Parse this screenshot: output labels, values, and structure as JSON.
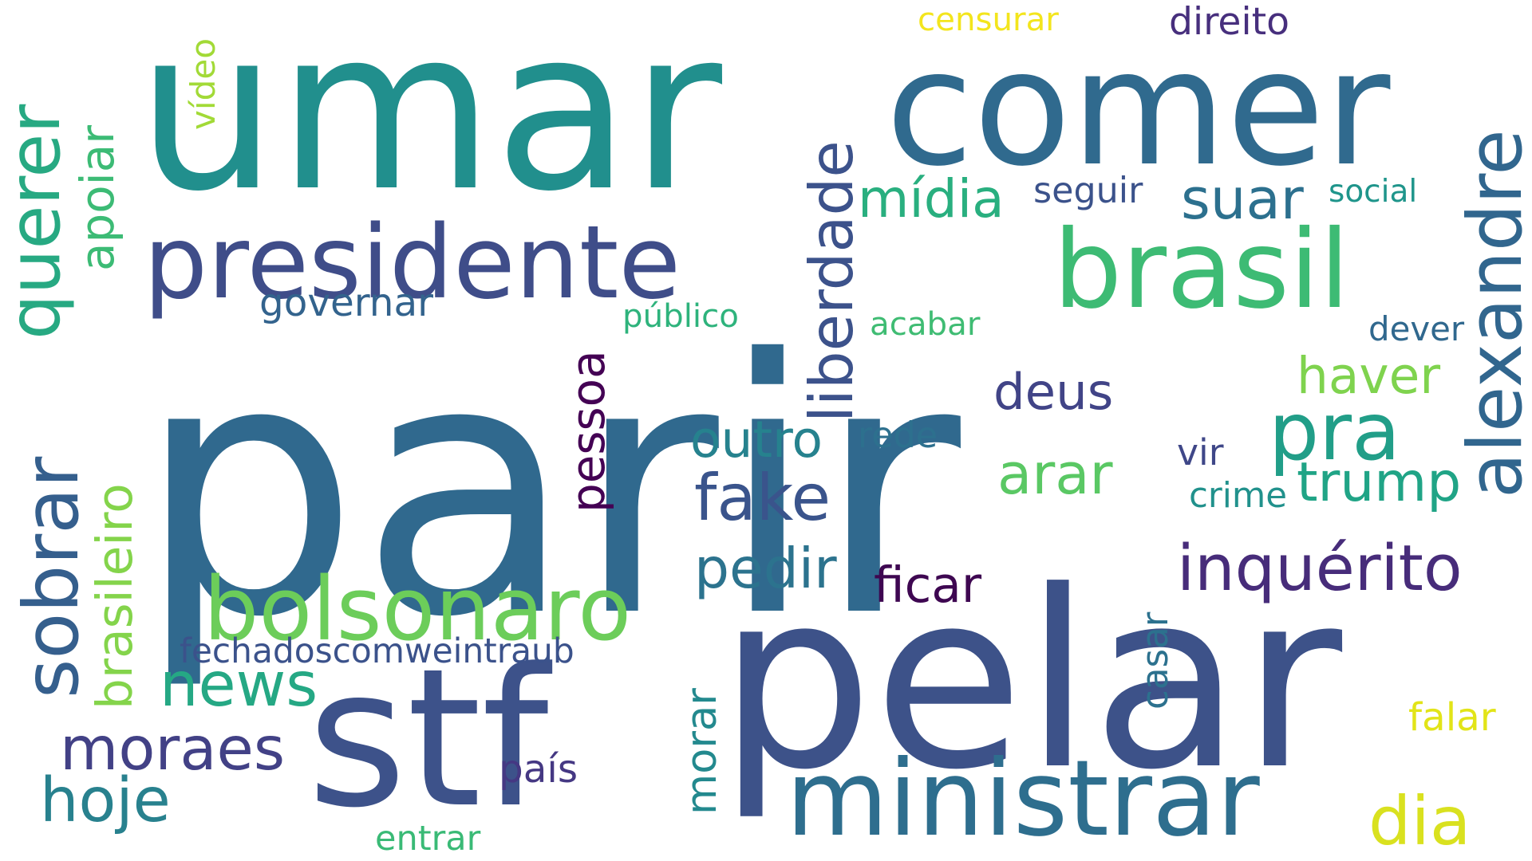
{
  "words": [
    {
      "text": "parir",
      "color": "#30698e"
    },
    {
      "text": "umar",
      "color": "#218f8d"
    },
    {
      "text": "comer",
      "color": "#306a8e"
    },
    {
      "text": "pelar",
      "color": "#3d5289"
    },
    {
      "text": "stf",
      "color": "#3d528a"
    },
    {
      "text": "presidente",
      "color": "#3f4d89"
    },
    {
      "text": "ministrar",
      "color": "#2e6e8e"
    },
    {
      "text": "brasil",
      "color": "#3dbb74"
    },
    {
      "text": "bolsonaro",
      "color": "#6ccd5a"
    },
    {
      "text": "querer",
      "color": "#27a982"
    },
    {
      "text": "sobrar",
      "color": "#355f8d"
    },
    {
      "text": "alexandre",
      "color": "#31668e"
    },
    {
      "text": "liberdade",
      "color": "#3c528b"
    },
    {
      "text": "pessoa",
      "color": "#440154"
    },
    {
      "text": "inquérito",
      "color": "#472c7a"
    },
    {
      "text": "pra",
      "color": "#219e88"
    },
    {
      "text": "dia",
      "color": "#d9e11f"
    },
    {
      "text": "news",
      "color": "#25a884"
    },
    {
      "text": "fake",
      "color": "#3a548c"
    },
    {
      "text": "mídia",
      "color": "#29af7f"
    },
    {
      "text": "suar",
      "color": "#2c708e"
    },
    {
      "text": "moraes",
      "color": "#424186"
    },
    {
      "text": "hoje",
      "color": "#28818e"
    },
    {
      "text": "pedir",
      "color": "#2c738e"
    },
    {
      "text": "ficar",
      "color": "#3e0751"
    },
    {
      "text": "trump",
      "color": "#20a486"
    },
    {
      "text": "arar",
      "color": "#5ac864"
    },
    {
      "text": "haver",
      "color": "#7fd34e"
    },
    {
      "text": "deus",
      "color": "#414487"
    },
    {
      "text": "outro",
      "color": "#26828e"
    },
    {
      "text": "brasileiro",
      "color": "#84d44b"
    },
    {
      "text": "apoiar",
      "color": "#3cbb75"
    },
    {
      "text": "morar",
      "color": "#23898e"
    },
    {
      "text": "fechadoscomweintraub",
      "color": "#3b528b"
    },
    {
      "text": "governar",
      "color": "#33638d"
    },
    {
      "text": "seguir",
      "color": "#3b528b"
    },
    {
      "text": "social",
      "color": "#1f958b"
    },
    {
      "text": "país",
      "color": "#453883"
    },
    {
      "text": "casar",
      "color": "#2c718e"
    },
    {
      "text": "falar",
      "color": "#e2e418"
    },
    {
      "text": "entrar",
      "color": "#3aba76"
    },
    {
      "text": "censurar",
      "color": "#f3e51d"
    },
    {
      "text": "direito",
      "color": "#472f7d"
    },
    {
      "text": "vídeo",
      "color": "#a2da37"
    },
    {
      "text": "público",
      "color": "#2eb37c"
    },
    {
      "text": "acabar",
      "color": "#3fbc73"
    },
    {
      "text": "dever",
      "color": "#30688e"
    },
    {
      "text": "rede",
      "color": "#2d708e"
    },
    {
      "text": "vir",
      "color": "#3f4788"
    },
    {
      "text": "crime",
      "color": "#21918c"
    }
  ]
}
